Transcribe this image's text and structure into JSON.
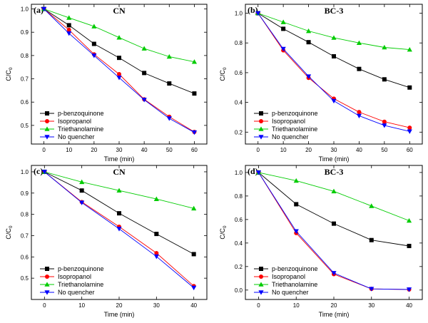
{
  "chart_data": [
    {
      "type": "line",
      "panel_label": "(a)",
      "title": "CN",
      "xlabel": "Time (min)",
      "ylabel": "C/C",
      "ylabel_sub": "0",
      "xlim": [
        -5,
        65
      ],
      "ylim": [
        0.42,
        1.02
      ],
      "xticks": [
        0,
        10,
        20,
        30,
        40,
        50,
        60
      ],
      "yticks": [
        0.5,
        0.6,
        0.7,
        0.8,
        0.9,
        1.0
      ],
      "ytick_labels": [
        "0.5",
        "0.6",
        "0.7",
        "0.8",
        "0.9",
        "1.0"
      ],
      "legend_position": "bottom-left",
      "x": [
        0,
        10,
        20,
        30,
        40,
        50,
        60
      ],
      "series": [
        {
          "name": "p-benzoquinone",
          "values": [
            1.0,
            0.93,
            0.85,
            0.79,
            0.725,
            0.68,
            0.637
          ]
        },
        {
          "name": "Isopropanol",
          "values": [
            1.0,
            0.91,
            0.805,
            0.72,
            0.612,
            0.537,
            0.472
          ]
        },
        {
          "name": "Triethanolamine",
          "values": [
            1.0,
            0.962,
            0.925,
            0.877,
            0.83,
            0.795,
            0.773
          ]
        },
        {
          "name": "No quencher",
          "values": [
            1.0,
            0.895,
            0.8,
            0.705,
            0.61,
            0.53,
            0.47
          ]
        }
      ]
    },
    {
      "type": "line",
      "panel_label": "(b)",
      "title": "BC-3",
      "xlabel": "Time (min)",
      "ylabel": "C/C",
      "ylabel_sub": "0",
      "xlim": [
        -5,
        65
      ],
      "ylim": [
        0.12,
        1.06
      ],
      "xticks": [
        0,
        10,
        20,
        30,
        40,
        50,
        60
      ],
      "yticks": [
        0.2,
        0.4,
        0.6,
        0.8,
        1.0
      ],
      "ytick_labels": [
        "0.2",
        "0.4",
        "0.6",
        "0.8",
        "1.0"
      ],
      "legend_position": "bottom-left",
      "x": [
        0,
        10,
        20,
        30,
        40,
        50,
        60
      ],
      "series": [
        {
          "name": "p-benzoquinone",
          "values": [
            1.0,
            0.895,
            0.805,
            0.71,
            0.625,
            0.555,
            0.5
          ]
        },
        {
          "name": "Isopropanol",
          "values": [
            1.0,
            0.75,
            0.565,
            0.425,
            0.335,
            0.27,
            0.23
          ]
        },
        {
          "name": "Triethanolamine",
          "values": [
            1.0,
            0.94,
            0.88,
            0.835,
            0.8,
            0.77,
            0.755
          ]
        },
        {
          "name": "No quencher",
          "values": [
            1.0,
            0.76,
            0.575,
            0.41,
            0.31,
            0.245,
            0.205
          ]
        }
      ]
    },
    {
      "type": "line",
      "panel_label": "(c)",
      "title": "CN",
      "xlabel": "Time (min)",
      "ylabel": "C/C",
      "ylabel_sub": "0",
      "xlim": [
        -3.5,
        43.5
      ],
      "ylim": [
        0.4,
        1.03
      ],
      "xticks": [
        0,
        10,
        20,
        30,
        40
      ],
      "yticks": [
        0.5,
        0.6,
        0.7,
        0.8,
        0.9,
        1.0
      ],
      "ytick_labels": [
        "0.5",
        "0.6",
        "0.7",
        "0.8",
        "0.9",
        "1.0"
      ],
      "legend_position": "bottom-left",
      "x": [
        0,
        10,
        20,
        30,
        40
      ],
      "series": [
        {
          "name": "p-benzoquinone",
          "values": [
            1.0,
            0.912,
            0.805,
            0.708,
            0.613
          ]
        },
        {
          "name": "Isopropanol",
          "values": [
            1.0,
            0.858,
            0.742,
            0.618,
            0.463
          ]
        },
        {
          "name": "Triethanolamine",
          "values": [
            1.0,
            0.952,
            0.912,
            0.872,
            0.828
          ]
        },
        {
          "name": "No quencher",
          "values": [
            1.0,
            0.855,
            0.732,
            0.602,
            0.455
          ]
        }
      ]
    },
    {
      "type": "line",
      "panel_label": "(d)",
      "title": "BC-3",
      "xlabel": "Time (min)",
      "ylabel": "C/C",
      "ylabel_sub": "0",
      "xlim": [
        -3.5,
        43.5
      ],
      "ylim": [
        -0.08,
        1.06
      ],
      "xticks": [
        0,
        10,
        20,
        30,
        40
      ],
      "yticks": [
        0.0,
        0.2,
        0.4,
        0.6,
        0.8,
        1.0
      ],
      "ytick_labels": [
        "0.0",
        "0.2",
        "0.4",
        "0.6",
        "0.8",
        "1.0"
      ],
      "legend_position": "bottom-left",
      "x": [
        0,
        10,
        20,
        30,
        40
      ],
      "series": [
        {
          "name": "p-benzoquinone",
          "values": [
            1.0,
            0.73,
            0.565,
            0.425,
            0.375
          ]
        },
        {
          "name": "Isopropanol",
          "values": [
            1.0,
            0.485,
            0.135,
            0.01,
            0.005
          ]
        },
        {
          "name": "Triethanolamine",
          "values": [
            1.0,
            0.93,
            0.84,
            0.715,
            0.59
          ]
        },
        {
          "name": "No quencher",
          "values": [
            1.0,
            0.5,
            0.145,
            0.01,
            0.005
          ]
        }
      ]
    }
  ],
  "series_style": [
    {
      "marker": "square",
      "color": "#000000"
    },
    {
      "marker": "circle",
      "color": "#ff0000"
    },
    {
      "marker": "triangle-up",
      "color": "#00cc00"
    },
    {
      "marker": "triangle-down",
      "color": "#0000ff"
    }
  ]
}
